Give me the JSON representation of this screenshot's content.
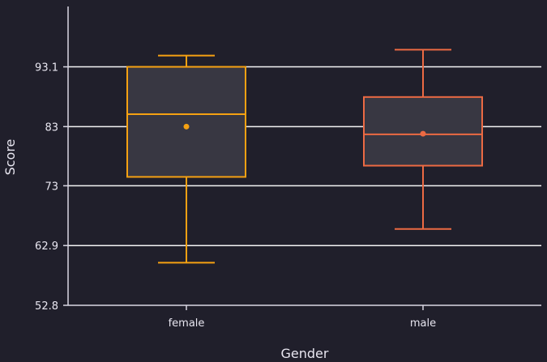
{
  "chart_data": {
    "type": "box",
    "title": "",
    "xlabel": "Gender",
    "ylabel": "Score",
    "ylim": [
      52.8,
      103.3
    ],
    "yticks": [
      "52.8",
      "62.9",
      "73",
      "83",
      "93.1"
    ],
    "tick_values": [
      52.8,
      62.9,
      73,
      83,
      93.1
    ],
    "categories": [
      "female",
      "male"
    ],
    "boxes": [
      {
        "category": "female",
        "whisker_low": 60,
        "q1": 74.5,
        "median": 85.1,
        "q3": 93.1,
        "whisker_high": 95,
        "mean": 83,
        "color": "#f5a112"
      },
      {
        "category": "male",
        "whisker_low": 65.7,
        "q1": 76.4,
        "median": 81.7,
        "q3": 88,
        "whisker_high": 96,
        "mean": 81.8,
        "color": "#ec6a43"
      }
    ],
    "grid": true,
    "colors": {
      "background": "#201f2b",
      "box_fill": "#383742",
      "grid": "#ffffff",
      "text": "#e8e6f0"
    }
  }
}
